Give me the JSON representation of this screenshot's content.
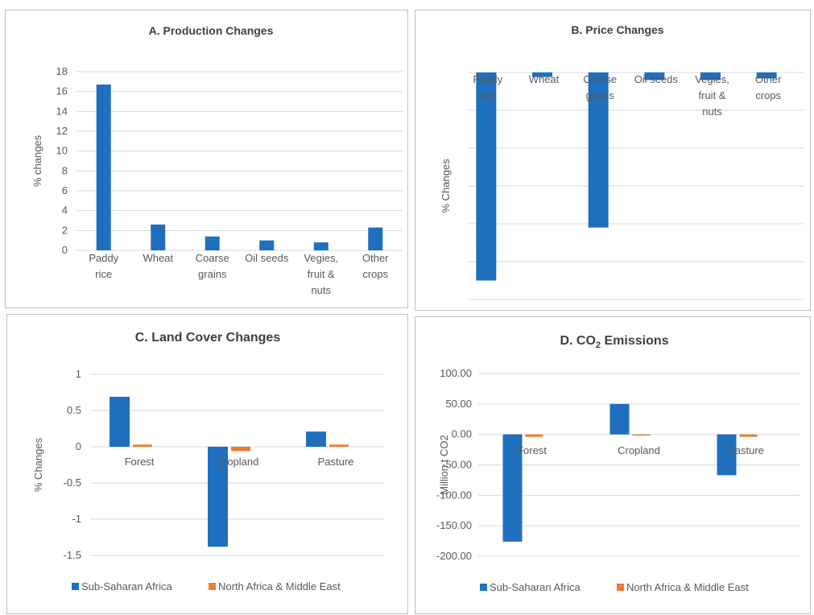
{
  "colors": {
    "sub_saharan": "#1f6fbf",
    "nafme": "#ed7d31"
  },
  "chart_data": [
    {
      "id": "a",
      "type": "bar",
      "title": "A. Production Changes",
      "ylabel": "% changes",
      "categories": [
        [
          "Paddy",
          "rice"
        ],
        [
          "Wheat"
        ],
        [
          "Coarse",
          "grains"
        ],
        [
          "Oil seeds"
        ],
        [
          "Vegies,",
          "fruit &",
          "nuts"
        ],
        [
          "Other",
          "crops"
        ]
      ],
      "ylim": [
        0,
        18
      ],
      "yticks": [
        0,
        2,
        4,
        6,
        8,
        10,
        12,
        14,
        16,
        18
      ],
      "ytick_labels": [
        "0",
        "2",
        "4",
        "6",
        "8",
        "10",
        "12",
        "14",
        "16",
        "18"
      ],
      "grid": true,
      "series": [
        {
          "values": [
            16.7,
            2.6,
            1.4,
            1.0,
            0.8,
            2.3
          ]
        }
      ]
    },
    {
      "id": "b",
      "type": "bar",
      "title": "B. Price Changes",
      "ylabel": "% Changes",
      "categories": [
        [
          "Paddy",
          "rice"
        ],
        [
          "Wheat"
        ],
        [
          "Coarse",
          "grains"
        ],
        [
          "Oil seeds"
        ],
        [
          "Vegies,",
          "fruit &",
          "nuts"
        ],
        [
          "Other",
          "crops"
        ]
      ],
      "ylim": [
        -30,
        0
      ],
      "yticks": [
        0,
        -5,
        -10,
        -15,
        -20,
        -25,
        -30
      ],
      "ytick_labels": [],
      "grid": true,
      "series": [
        {
          "values": [
            -27.5,
            -0.6,
            -20.5,
            -1.0,
            -1.0,
            -0.8
          ]
        }
      ]
    },
    {
      "id": "c",
      "type": "bar",
      "title": "C. Land Cover Changes",
      "ylabel": "% Changes",
      "categories": [
        [
          "Forest"
        ],
        [
          "Cropland"
        ],
        [
          "Pasture"
        ]
      ],
      "ylim": [
        -1.5,
        1
      ],
      "yticks": [
        1,
        0.5,
        0,
        -0.5,
        -1,
        -1.5
      ],
      "ytick_labels": [
        "1",
        "0.5",
        "0",
        "-0.5",
        "-1",
        "-1.5"
      ],
      "grid": true,
      "legend": "bottom",
      "series": [
        {
          "name": "Sub-Saharan Africa",
          "values": [
            0.69,
            -1.38,
            0.21
          ]
        },
        {
          "name": "North Africa & Middle East",
          "values": [
            0.03,
            -0.06,
            0.03
          ]
        }
      ]
    },
    {
      "id": "d",
      "type": "bar",
      "title": "D. CO",
      "title_sub": "2",
      "title_tail": " Emissions",
      "ylabel": "Million t CO2",
      "categories": [
        [
          "Forest"
        ],
        [
          "Cropland"
        ],
        [
          "Pasture"
        ]
      ],
      "ylim": [
        -200,
        100
      ],
      "yticks": [
        100,
        50,
        0,
        -50,
        -100,
        -150,
        -200
      ],
      "ytick_labels": [
        "100.00",
        "50.00",
        "0.00",
        "-50.00",
        "-100.00",
        "-150.00",
        "-200.00"
      ],
      "grid": true,
      "legend": "bottom",
      "series": [
        {
          "name": "Sub-Saharan Africa",
          "values": [
            -176,
            50,
            -67
          ]
        },
        {
          "name": "North Africa & Middle East",
          "values": [
            -4,
            -1.5,
            -4
          ]
        }
      ]
    }
  ]
}
